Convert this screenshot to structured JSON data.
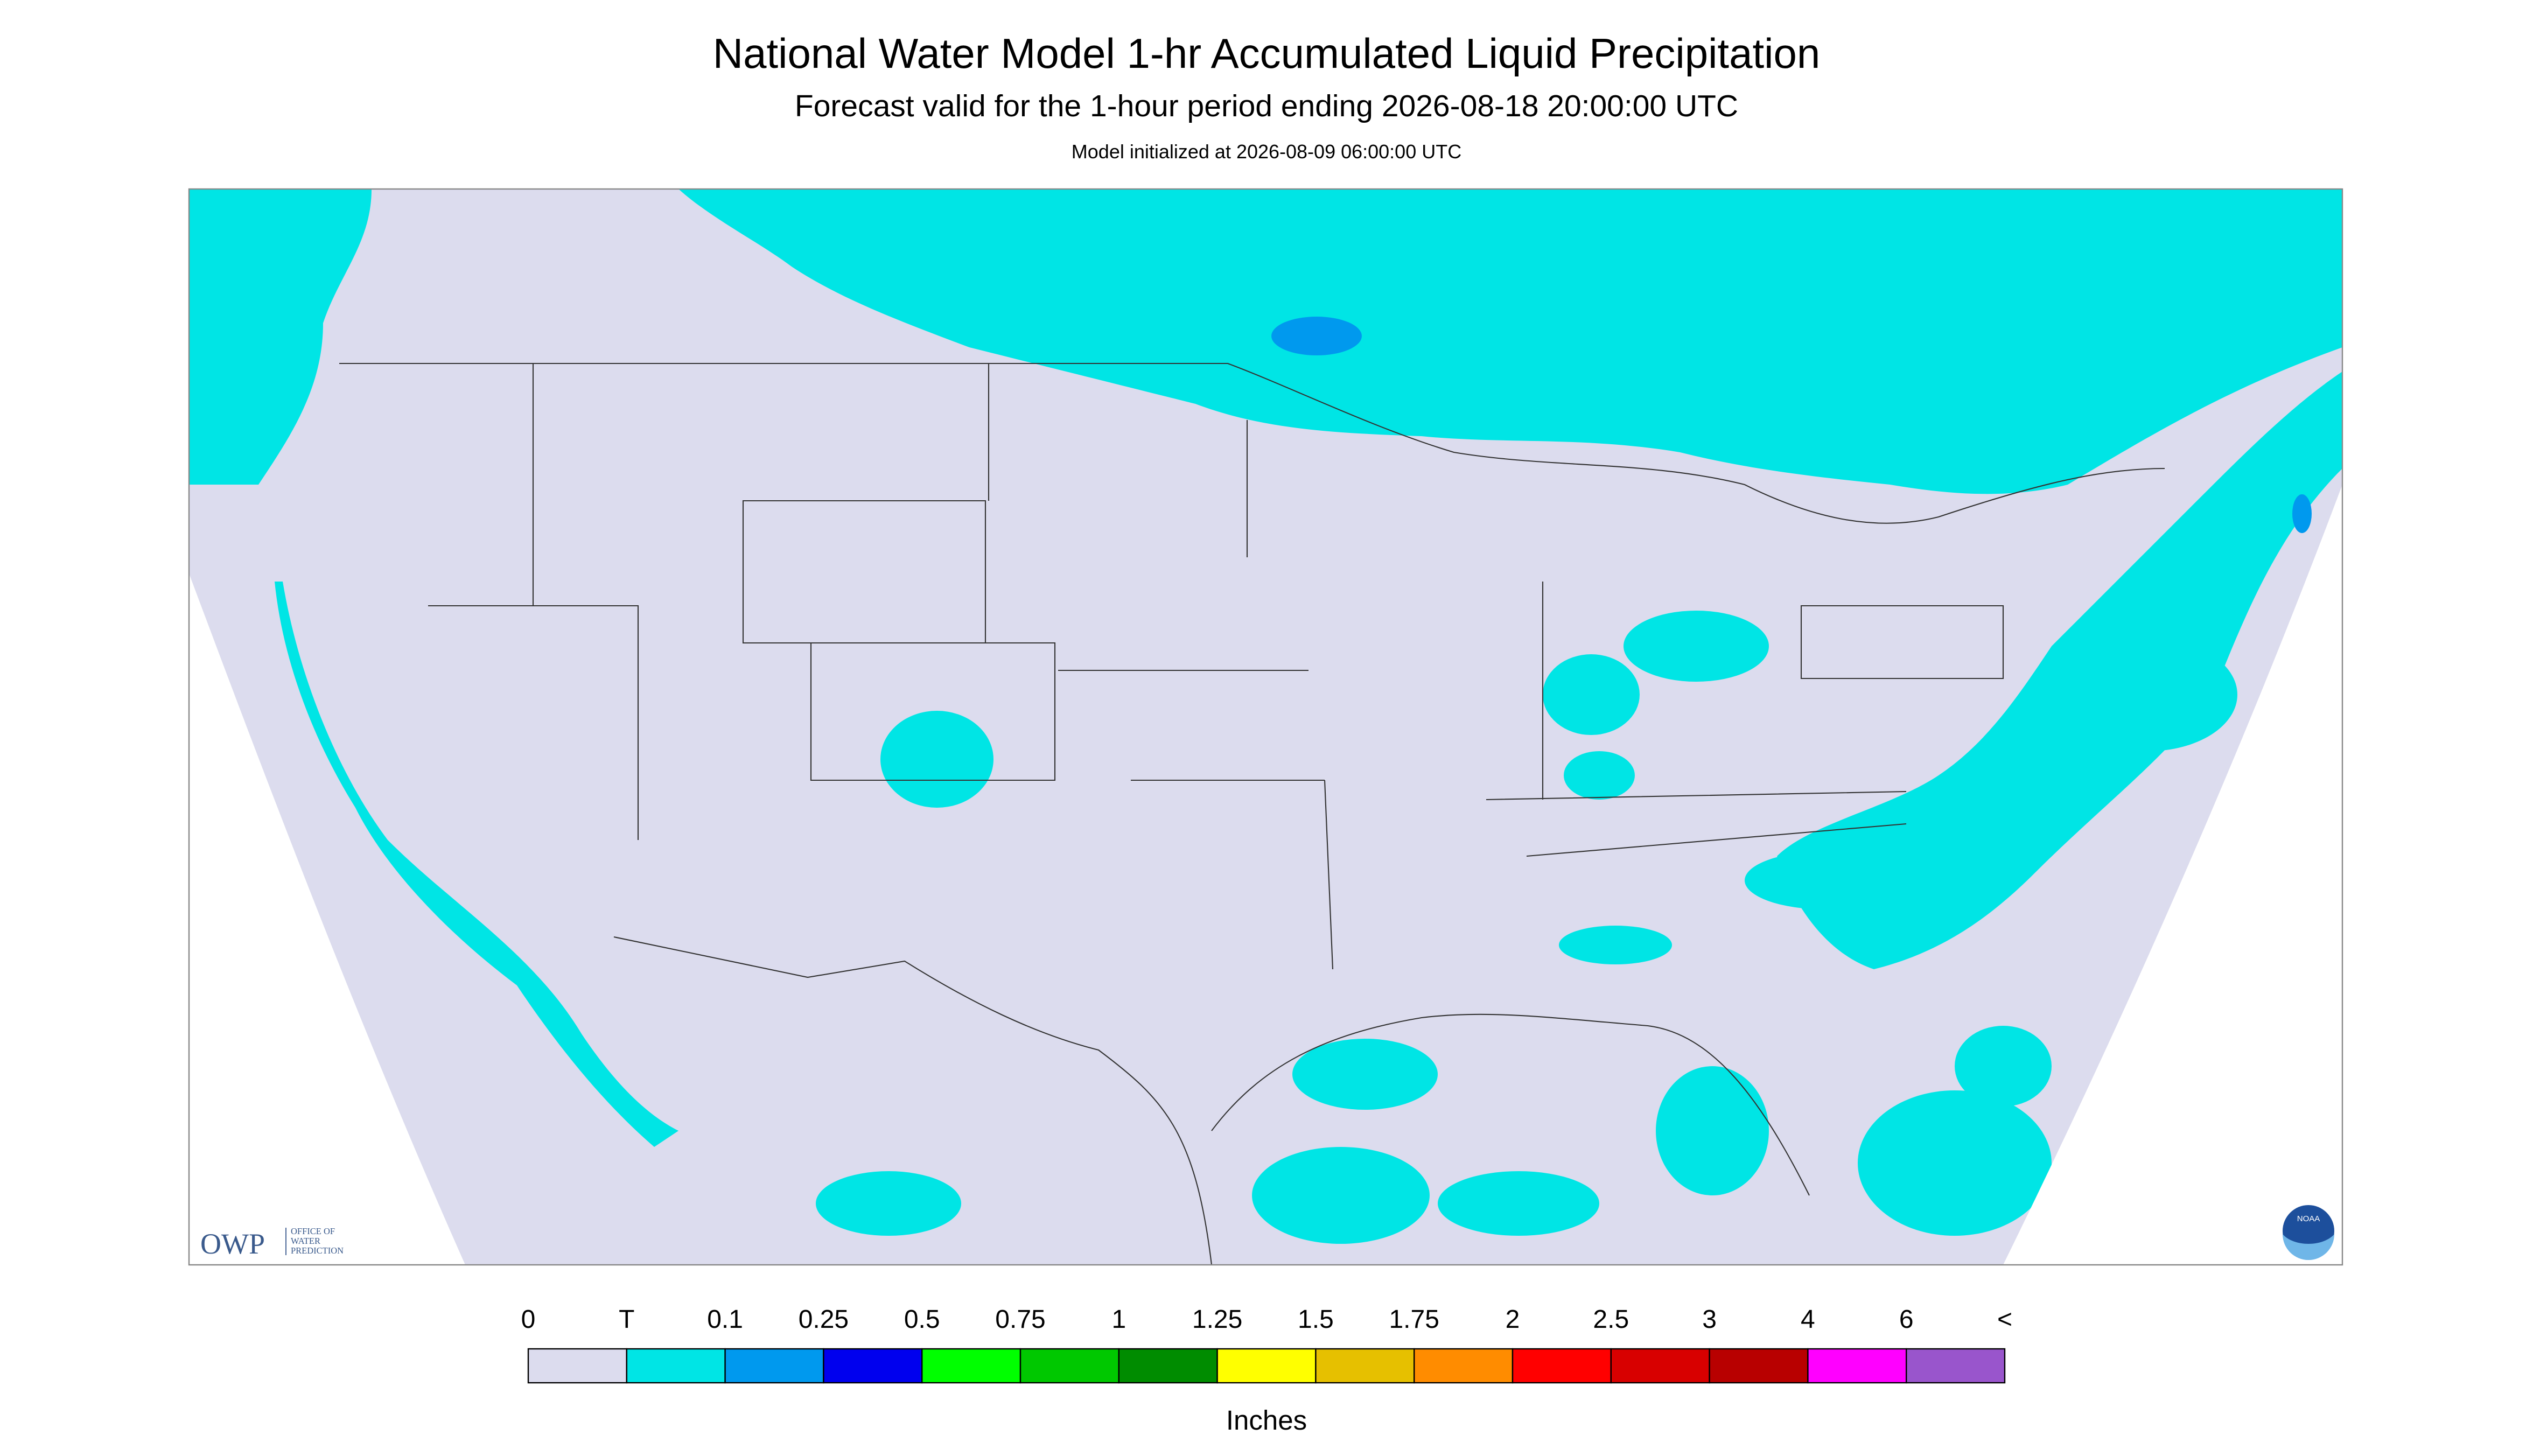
{
  "header": {
    "title": "National Water Model 1-hr Accumulated Liquid Precipitation",
    "subtitle": "Forecast valid for the 1-hour period ending 2026-08-18 20:00:00 UTC",
    "initialized": "Model initialized at 2026-08-09 06:00:00 UTC"
  },
  "legend": {
    "labels": [
      "0",
      "T",
      "0.1",
      "0.25",
      "0.5",
      "0.75",
      "1",
      "1.25",
      "1.5",
      "1.75",
      "2",
      "2.5",
      "3",
      "4",
      "6",
      "<"
    ],
    "colors": [
      "#dcdcee",
      "#00e5e5",
      "#0099ee",
      "#0000ee",
      "#00ff00",
      "#00c800",
      "#008c00",
      "#ffff00",
      "#e6c000",
      "#ff8c00",
      "#ff0000",
      "#d80000",
      "#b80000",
      "#ff00ff",
      "#9955cc"
    ],
    "unit": "Inches"
  },
  "logos": {
    "owp": "OWP",
    "owp_lines": [
      "OFFICE OF",
      "WATER",
      "PREDICTION"
    ],
    "noaa": "NOAA"
  }
}
